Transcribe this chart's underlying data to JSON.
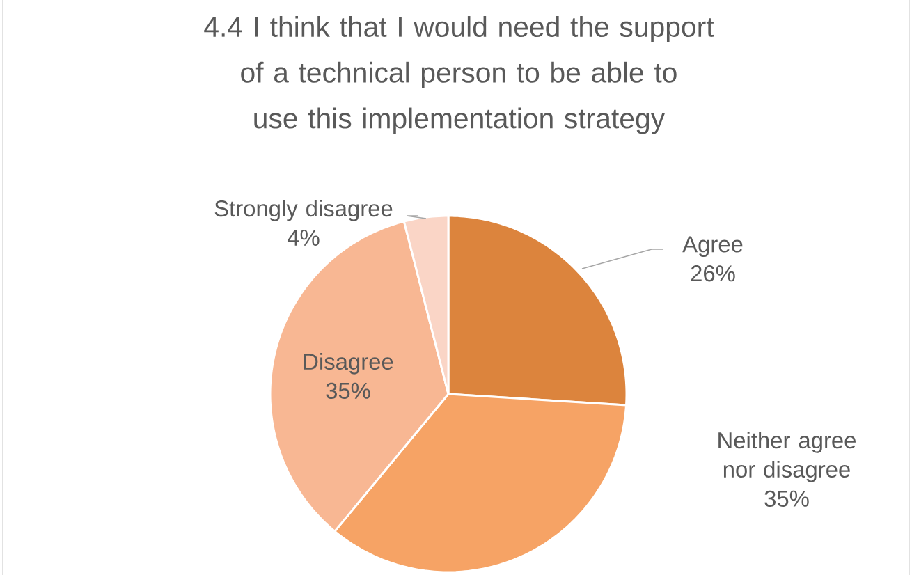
{
  "chart_data": {
    "type": "pie",
    "title": "4.4 I think that I would need the support of a technical person to be able to use this implementation strategy",
    "categories": [
      "Agree",
      "Neither agree nor disagree",
      "Disagree",
      "Strongly disagree"
    ],
    "values": [
      26,
      35,
      35,
      4
    ],
    "colors": [
      "#dc843d",
      "#f6a365",
      "#f8b793",
      "#fad5c6"
    ],
    "value_labels": [
      "26%",
      "35%",
      "35%",
      "4%"
    ]
  }
}
